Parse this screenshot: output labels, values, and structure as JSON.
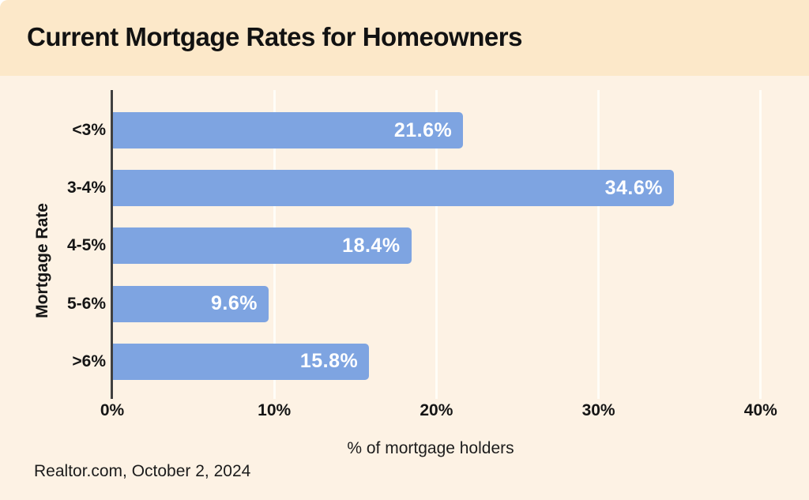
{
  "title": "Current Mortgage Rates for Homeowners",
  "source": "Realtor.com, October 2, 2024",
  "chart_data": {
    "type": "bar",
    "orientation": "horizontal",
    "title": "Current Mortgage Rates for Homeowners",
    "categories": [
      "<3%",
      "3-4%",
      "4-5%",
      "5-6%",
      ">6%"
    ],
    "values": [
      21.6,
      34.6,
      18.4,
      9.6,
      15.8
    ],
    "value_labels": [
      "21.6%",
      "34.6%",
      "18.4%",
      "9.6%",
      "15.8%"
    ],
    "xlabel": "% of mortgage holders",
    "ylabel": "Mortgage Rate",
    "xlim": [
      0,
      40
    ],
    "xticks": [
      {
        "value": 0,
        "label": "0%"
      },
      {
        "value": 10,
        "label": "10%"
      },
      {
        "value": 20,
        "label": "20%"
      },
      {
        "value": 30,
        "label": "30%"
      },
      {
        "value": 40,
        "label": "40%"
      }
    ],
    "grid": "vertical gridlines at 10% intervals, drawn behind bars",
    "legend": "none",
    "colors": {
      "bar": "#7ea4e1",
      "plot_background": "#fdf2e4",
      "header_band": "#fce8c9",
      "grid_line": "#fffdf7",
      "axis_line": "#404040",
      "value_label": "#ffffff",
      "text": "#151515"
    }
  }
}
